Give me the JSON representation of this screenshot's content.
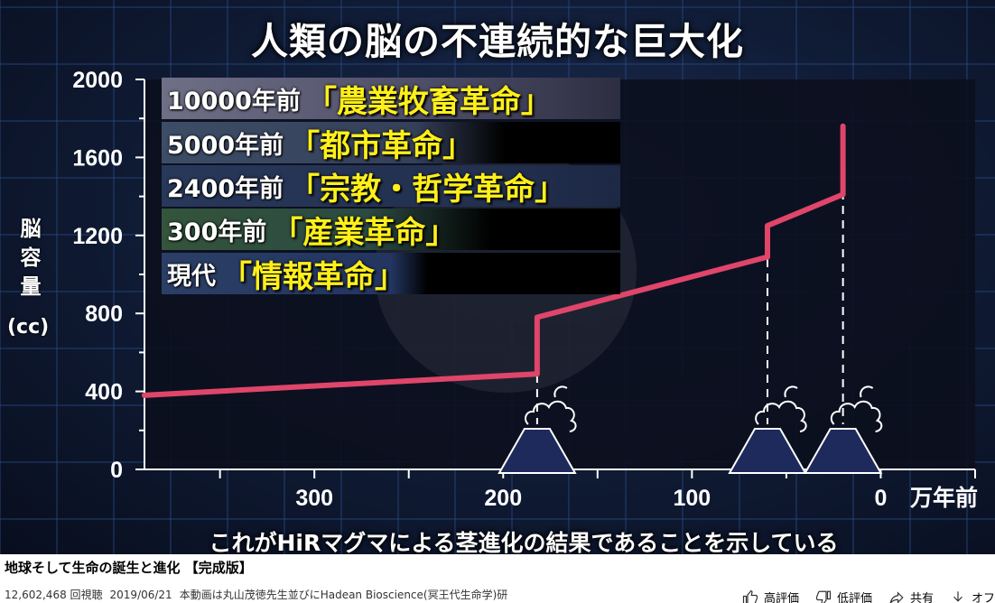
{
  "video": {
    "title": "人類の脳の不連続的な巨大化",
    "subtitle": "これがHiRマグマによる茎進化の結果であることを示している",
    "revolutions": [
      {
        "years": "10000年前",
        "name": "「農業牧畜革命」"
      },
      {
        "years": "5000年前",
        "name": "「都市革命」"
      },
      {
        "years": "2400年前",
        "name": "「宗教・哲学革命」"
      },
      {
        "years": "300年前",
        "name": "「産業革命」"
      },
      {
        "years": "現代",
        "name": "「情報革命」"
      }
    ],
    "y_axis_label": "脳容量",
    "y_axis_unit": "(cc)",
    "x_axis_unit": "万年前",
    "colors": {
      "line": "#e0456a",
      "grid": "#2a4a85",
      "volcano": "#1e2a5c"
    }
  },
  "chart_data": {
    "type": "line",
    "title": "人類の脳の不連続的な巨大化",
    "xlabel": "万年前",
    "ylabel": "脳容量 (cc)",
    "x_reversed": true,
    "xlim": [
      390,
      -50
    ],
    "ylim": [
      0,
      2000
    ],
    "x_ticks": [
      300,
      200,
      100,
      0
    ],
    "x_tick_labels": [
      "300",
      "200",
      "100",
      "0"
    ],
    "y_ticks": [
      0,
      400,
      800,
      1200,
      1600,
      2000
    ],
    "y_tick_labels": [
      "0",
      "400",
      "800",
      "1200",
      "1600",
      "2000"
    ],
    "series": [
      {
        "name": "脳容量",
        "x": [
          390,
          182,
          182,
          60,
          60,
          20,
          20
        ],
        "y": [
          380,
          490,
          780,
          1090,
          1250,
          1410,
          1760
        ]
      }
    ],
    "events_x": [
      182,
      60,
      20
    ]
  },
  "page": {
    "title": "地球そして生命の誕生と進化 【完成版】",
    "views": "12,602,468 回視聴",
    "date": "2019/06/21",
    "description": "本動画は丸山茂徳先生並びにHadean Bioscience(冥王代生命学)研",
    "actions": {
      "like": "高評価",
      "dislike": "低評価",
      "share": "共有",
      "save": "オフ"
    }
  }
}
